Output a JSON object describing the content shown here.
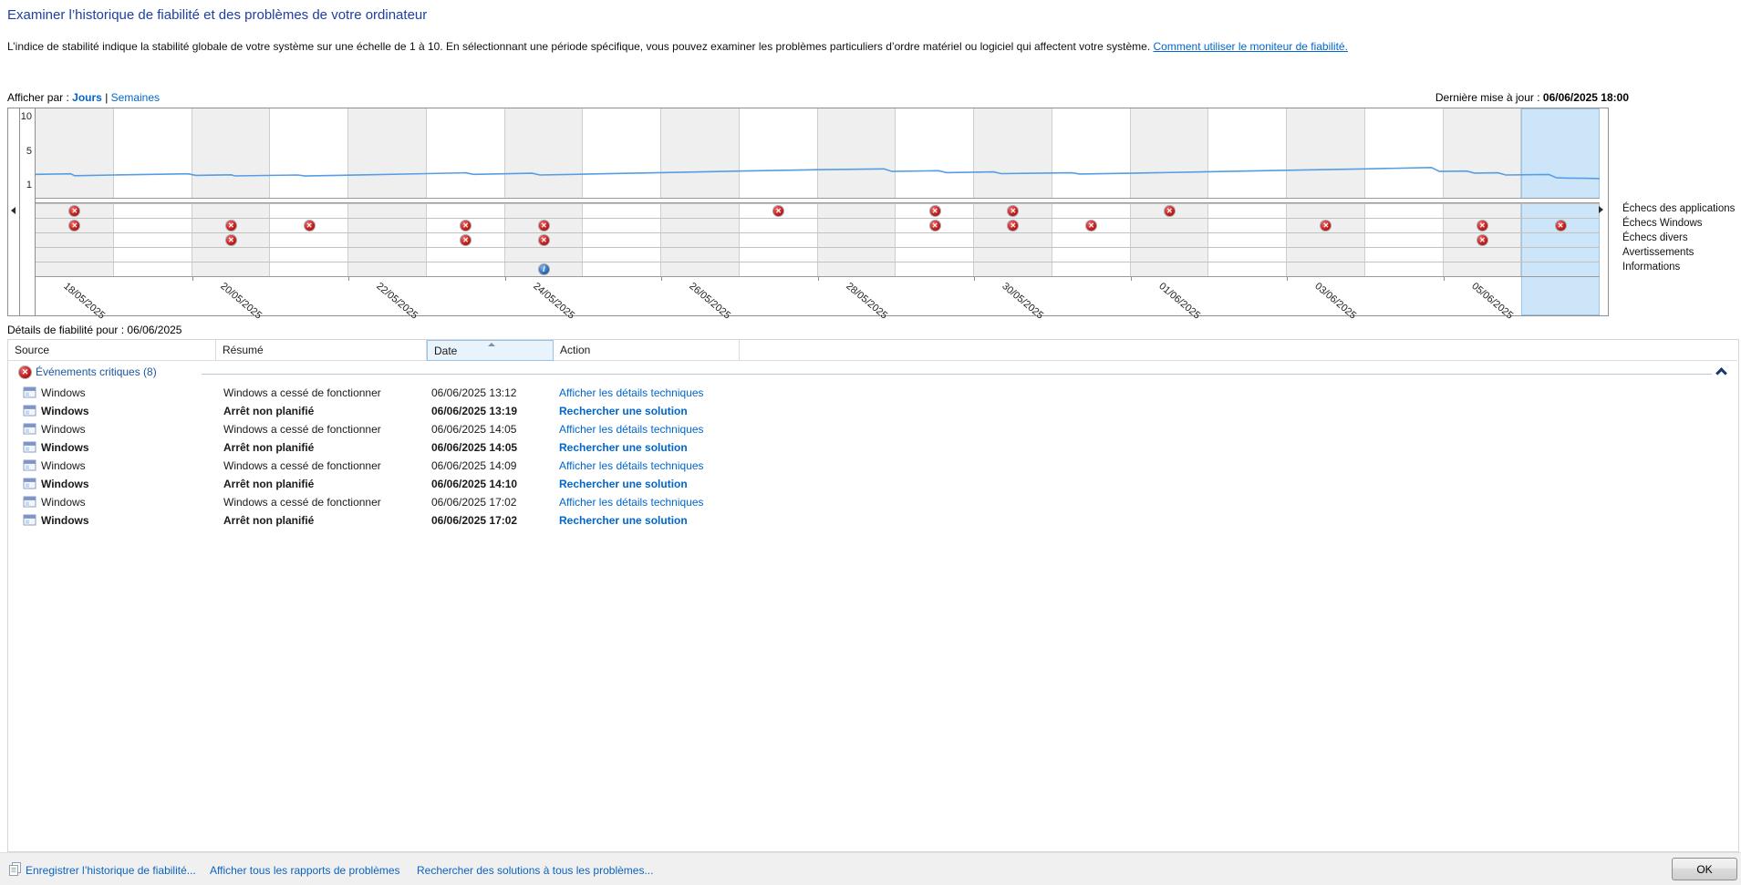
{
  "page": {
    "title": "Examiner l’historique de fiabilité et des problèmes de votre ordinateur",
    "description": "L’indice de stabilité indique la stabilité globale de votre système sur une échelle de 1 à 10. En sélectionnant une période spécifique, vous pouvez examiner les problèmes particuliers d’ordre matériel ou logiciel qui affectent votre système. ",
    "help_link": "Comment utiliser le moniteur de fiabilité."
  },
  "toolbar": {
    "view_by_label": "Afficher par :",
    "view_days": "Jours",
    "separator": "|",
    "view_weeks": "Semaines",
    "last_update_label": "Dernière mise à jour : ",
    "last_update_value": "06/06/2025 18:00"
  },
  "chart_data": {
    "type": "line",
    "title": "Stability index history (Reliability Monitor)",
    "y_tick_labels": [
      "10",
      "5",
      "1"
    ],
    "ylim": [
      1,
      10
    ],
    "num_columns": 20,
    "selected_column": 19,
    "x_tick_labels": [
      "18/05/2025",
      "20/05/2025",
      "22/05/2025",
      "24/05/2025",
      "26/05/2025",
      "28/05/2025",
      "30/05/2025",
      "01/06/2025",
      "03/06/2025",
      "05/06/2025"
    ],
    "line_points": [
      [
        0,
        2.35
      ],
      [
        0.45,
        2.42
      ],
      [
        0.5,
        2.2
      ],
      [
        1,
        2.28
      ],
      [
        1.95,
        2.42
      ],
      [
        2.05,
        2.24
      ],
      [
        2.5,
        2.3
      ],
      [
        2.55,
        2.17
      ],
      [
        3.35,
        2.28
      ],
      [
        3.45,
        2.16
      ],
      [
        4,
        2.26
      ],
      [
        5,
        2.44
      ],
      [
        5.5,
        2.54
      ],
      [
        5.6,
        2.36
      ],
      [
        6.35,
        2.48
      ],
      [
        6.45,
        2.28
      ],
      [
        7,
        2.38
      ],
      [
        8,
        2.56
      ],
      [
        9,
        2.74
      ],
      [
        10,
        2.9
      ],
      [
        10.85,
        3.0
      ],
      [
        10.95,
        2.7
      ],
      [
        11.55,
        2.78
      ],
      [
        11.65,
        2.56
      ],
      [
        12.25,
        2.64
      ],
      [
        12.35,
        2.44
      ],
      [
        13.25,
        2.54
      ],
      [
        13.35,
        2.4
      ],
      [
        14,
        2.48
      ],
      [
        15,
        2.66
      ],
      [
        16,
        2.84
      ],
      [
        17,
        3.0
      ],
      [
        17.85,
        3.16
      ],
      [
        17.95,
        2.7
      ],
      [
        18.3,
        2.74
      ],
      [
        18.4,
        2.5
      ],
      [
        18.7,
        2.54
      ],
      [
        18.8,
        2.28
      ],
      [
        19.35,
        2.34
      ],
      [
        19.45,
        1.95
      ],
      [
        19.6,
        1.92
      ],
      [
        19.8,
        1.9
      ],
      [
        20,
        1.86
      ]
    ],
    "event_rows": [
      {
        "label": "Échecs des applications",
        "icon": "critical",
        "columns": [
          0,
          9,
          11,
          12,
          14
        ]
      },
      {
        "label": "Échecs Windows",
        "icon": "critical",
        "columns": [
          0,
          2,
          3,
          5,
          6,
          11,
          12,
          13,
          16,
          18,
          19
        ]
      },
      {
        "label": "Échecs divers",
        "icon": "critical",
        "columns": [
          2,
          5,
          6,
          18
        ]
      },
      {
        "label": "Avertissements",
        "icon": "warning",
        "columns": []
      },
      {
        "label": "Informations",
        "icon": "info",
        "columns": [
          6
        ]
      }
    ],
    "colors": {
      "line": "#569de5",
      "selected_column": "#cde5f8",
      "alt_column": "#efefef",
      "critical_icon": "#c21a1a",
      "info_icon": "#2a67b5"
    }
  },
  "details": {
    "heading_label": "Détails de fiabilité pour : ",
    "heading_date": "06/06/2025",
    "columns": [
      "Source",
      "Résumé",
      "Date",
      "Action"
    ],
    "group_label": "Événements critiques (8)",
    "rows": [
      {
        "source": "Windows",
        "summary": "Windows a cessé de fonctionner",
        "date": "06/06/2025 13:12",
        "action": "Afficher les détails techniques",
        "bold": false
      },
      {
        "source": "Windows",
        "summary": "Arrêt non planifié",
        "date": "06/06/2025 13:19",
        "action": "Rechercher une solution",
        "bold": true
      },
      {
        "source": "Windows",
        "summary": "Windows a cessé de fonctionner",
        "date": "06/06/2025 14:05",
        "action": "Afficher les détails techniques",
        "bold": false
      },
      {
        "source": "Windows",
        "summary": "Arrêt non planifié",
        "date": "06/06/2025 14:05",
        "action": "Rechercher une solution",
        "bold": true
      },
      {
        "source": "Windows",
        "summary": "Windows a cessé de fonctionner",
        "date": "06/06/2025 14:09",
        "action": "Afficher les détails techniques",
        "bold": false
      },
      {
        "source": "Windows",
        "summary": "Arrêt non planifié",
        "date": "06/06/2025 14:10",
        "action": "Rechercher une solution",
        "bold": true
      },
      {
        "source": "Windows",
        "summary": "Windows a cessé de fonctionner",
        "date": "06/06/2025 17:02",
        "action": "Afficher les détails techniques",
        "bold": false
      },
      {
        "source": "Windows",
        "summary": "Arrêt non planifié",
        "date": "06/06/2025 17:02",
        "action": "Rechercher une solution",
        "bold": true
      }
    ]
  },
  "footer": {
    "links": [
      "Enregistrer l’historique de fiabilité...",
      "Afficher tous les rapports de problèmes",
      "Rechercher des solutions à tous les problèmes..."
    ],
    "ok_label": "OK"
  }
}
